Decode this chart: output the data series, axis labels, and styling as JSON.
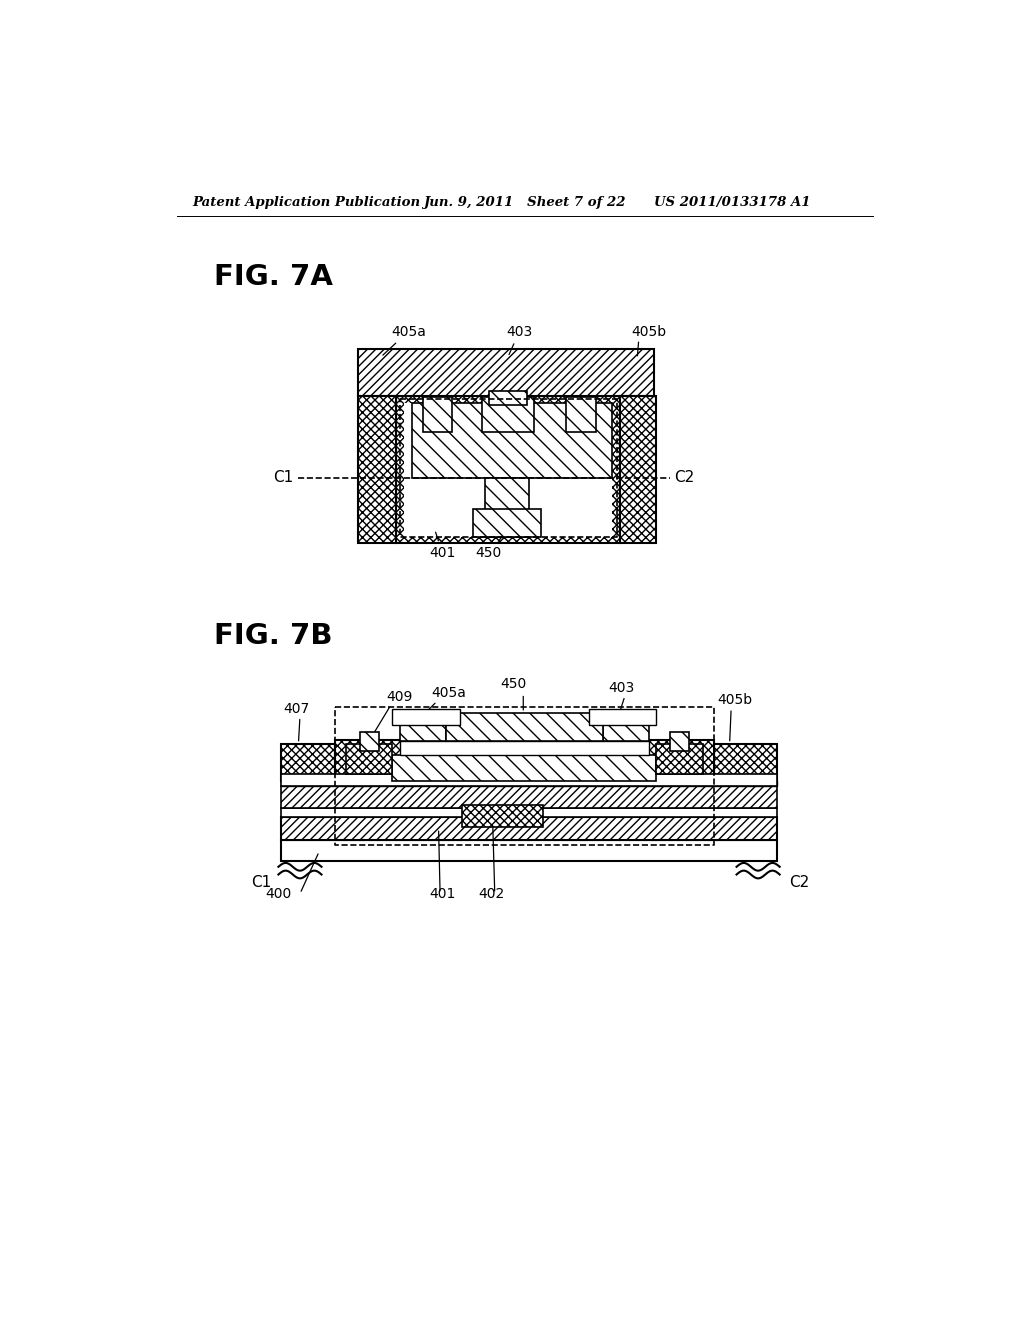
{
  "bg_color": "#ffffff",
  "header_left": "Patent Application Publication",
  "header_center": "Jun. 9, 2011   Sheet 7 of 22",
  "header_right": "US 2011/0133178 A1",
  "fig7a_label": "FIG. 7A",
  "fig7b_label": "FIG. 7B",
  "lc": "#000000"
}
